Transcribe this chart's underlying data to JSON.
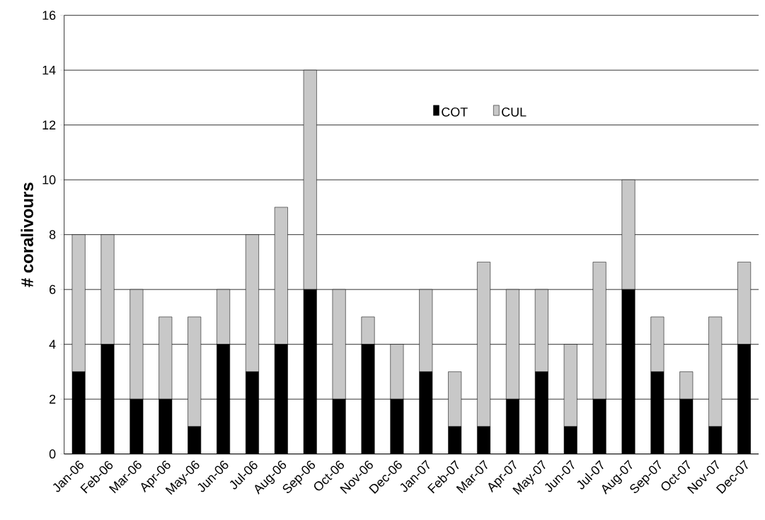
{
  "chart_data": {
    "type": "bar",
    "stacked": true,
    "ylabel": "# coralivours",
    "categories": [
      "Jan-06",
      "Feb-06",
      "Mar-06",
      "Apr-06",
      "May-06",
      "Jun-06",
      "Jul-06",
      "Aug-06",
      "Sep-06",
      "Oct-06",
      "Nov-06",
      "Dec-06",
      "Jan-07",
      "Feb-07",
      "Mar-07",
      "Apr-07",
      "May-07",
      "Jun-07",
      "Jul-07",
      "Aug-07",
      "Sep-07",
      "Oct-07",
      "Nov-07",
      "Dec-07"
    ],
    "series": [
      {
        "name": "COT",
        "color": "#000000",
        "values": [
          3,
          4,
          2,
          2,
          1,
          4,
          3,
          4,
          6,
          2,
          4,
          2,
          3,
          1,
          1,
          2,
          3,
          1,
          2,
          6,
          3,
          2,
          1,
          4
        ]
      },
      {
        "name": "CUL",
        "color": "#c8c8c8",
        "values": [
          5,
          4,
          4,
          3,
          4,
          2,
          5,
          5,
          8,
          4,
          1,
          2,
          3,
          2,
          6,
          4,
          3,
          3,
          5,
          4,
          2,
          1,
          4,
          3
        ]
      }
    ],
    "ylim": [
      0,
      16
    ],
    "yticks": [
      0,
      2,
      4,
      6,
      8,
      10,
      12,
      14,
      16
    ],
    "grid": "y",
    "legend": "top"
  }
}
